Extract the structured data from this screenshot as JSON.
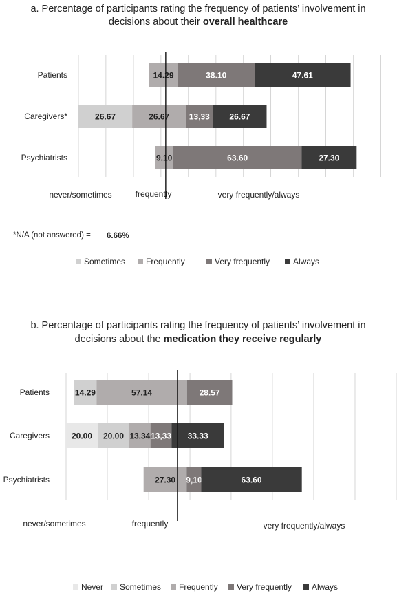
{
  "colors": {
    "Never": "#e8e8e8",
    "Sometimes": "#d0d0d0",
    "Frequently": "#b0acac",
    "Very frequently": "#7e7878",
    "Always": "#3a3a3a"
  },
  "chart_data": [
    {
      "type": "bar",
      "orientation": "horizontal",
      "stacked": true,
      "title_prefix": "a. Percentage of participants rating the frequency of patients’ involvement in decisions about their ",
      "title_bold": "overall healthcare",
      "categories": [
        "Patients",
        "Caregivers*",
        "Psychiatrists"
      ],
      "series": [
        {
          "name": "Sometimes",
          "values": [
            0,
            26.67,
            0
          ]
        },
        {
          "name": "Frequently",
          "values": [
            14.29,
            26.67,
            9.1
          ]
        },
        {
          "name": "Very frequently",
          "values": [
            38.1,
            13.33,
            63.6
          ]
        },
        {
          "name": "Always",
          "values": [
            47.61,
            26.67,
            27.3
          ]
        }
      ],
      "value_labels": [
        [
          "",
          "14.29",
          "38.10",
          "47.61"
        ],
        [
          "26.67",
          "26.67",
          "13,33",
          "26.67"
        ],
        [
          "",
          "9.10",
          "63.60",
          "27.30"
        ]
      ],
      "axis_labels": [
        "never/sometimes",
        "frequently",
        "very frequently/always"
      ],
      "note_label": "*N/A (not answered) =",
      "note_value": "6.66%",
      "legend": [
        "Sometimes",
        "Frequently",
        "Very frequently",
        "Always"
      ],
      "legend_position": "bottom"
    },
    {
      "type": "bar",
      "orientation": "horizontal",
      "stacked": true,
      "title_prefix": "b. Percentage of participants rating the frequency of patients’ involvement in decisions about the ",
      "title_bold": "medication they receive regularly",
      "categories": [
        "Patients",
        "Caregivers",
        "Psychiatrists"
      ],
      "series": [
        {
          "name": "Never",
          "values": [
            0,
            20.0,
            0
          ]
        },
        {
          "name": "Sometimes",
          "values": [
            14.29,
            20.0,
            0
          ]
        },
        {
          "name": "Frequently",
          "values": [
            57.14,
            13.34,
            27.3
          ]
        },
        {
          "name": "Very frequently",
          "values": [
            28.57,
            13.33,
            9.1
          ]
        },
        {
          "name": "Always",
          "values": [
            0,
            33.33,
            63.6
          ]
        }
      ],
      "value_labels": [
        [
          "",
          "14.29",
          "57.14",
          "28.57",
          ""
        ],
        [
          "20.00",
          "20.00",
          "13.34",
          "13,33",
          "33.33"
        ],
        [
          "",
          "",
          "27.30",
          "9,10",
          "63.60"
        ]
      ],
      "axis_labels": [
        "never/sometimes",
        "frequently",
        "very frequently/always"
      ],
      "legend": [
        "Never",
        "Sometimes",
        "Frequently",
        "Very frequently",
        "Always"
      ],
      "legend_position": "bottom"
    }
  ]
}
